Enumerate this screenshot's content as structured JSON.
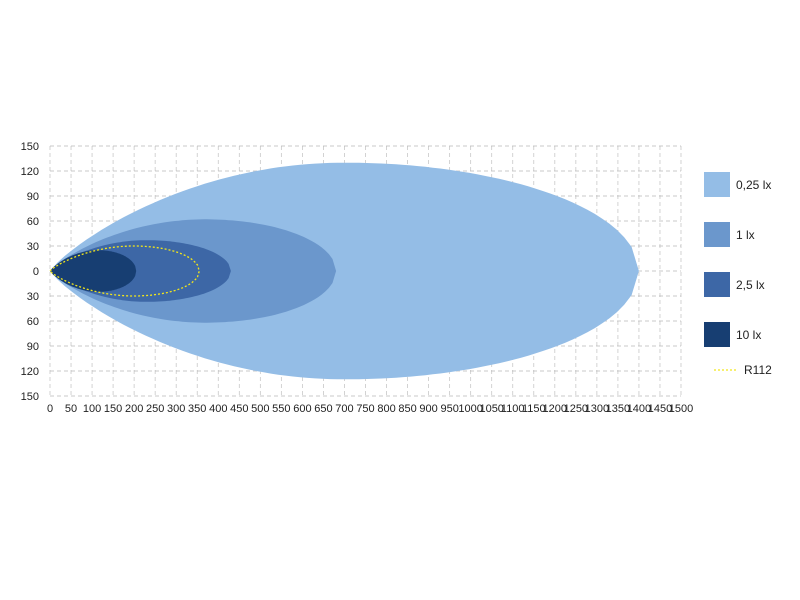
{
  "chart_data": {
    "type": "area",
    "title": "",
    "xlabel": "",
    "ylabel": "",
    "xlim": [
      0,
      1500
    ],
    "ylim": [
      -150,
      150
    ],
    "x_ticks": [
      "0",
      "50",
      "100",
      "150",
      "200",
      "250",
      "300",
      "350",
      "400",
      "450",
      "500",
      "550",
      "600",
      "650",
      "700",
      "750",
      "800",
      "850",
      "900",
      "950",
      "1000",
      "1050",
      "1100",
      "1150",
      "1200",
      "1250",
      "1300",
      "1350",
      "1400",
      "1450",
      "1500"
    ],
    "y_ticks": [
      "150",
      "120",
      "90",
      "60",
      "30",
      "0",
      "30",
      "60",
      "90",
      "120",
      "150"
    ],
    "grid": true,
    "legend_position": "right",
    "series": [
      {
        "name": "0,25 lx",
        "color": "#94bde6",
        "reach": 1400,
        "max_half_width": 130,
        "max_width_at": 700
      },
      {
        "name": "1 lx",
        "color": "#6b97cc",
        "reach": 680,
        "max_half_width": 62,
        "max_width_at": 370
      },
      {
        "name": "2,5 lx",
        "color": "#3d67a6",
        "reach": 430,
        "max_half_width": 37,
        "max_width_at": 230
      },
      {
        "name": "10 lx",
        "color": "#173e72",
        "reach": 205,
        "max_half_width": 25,
        "max_width_at": 115
      }
    ],
    "reference": {
      "name": "R112",
      "color": "#f2e61a",
      "style": "dotted",
      "reach": 355,
      "max_half_width": 30,
      "max_width_at": 200
    }
  }
}
